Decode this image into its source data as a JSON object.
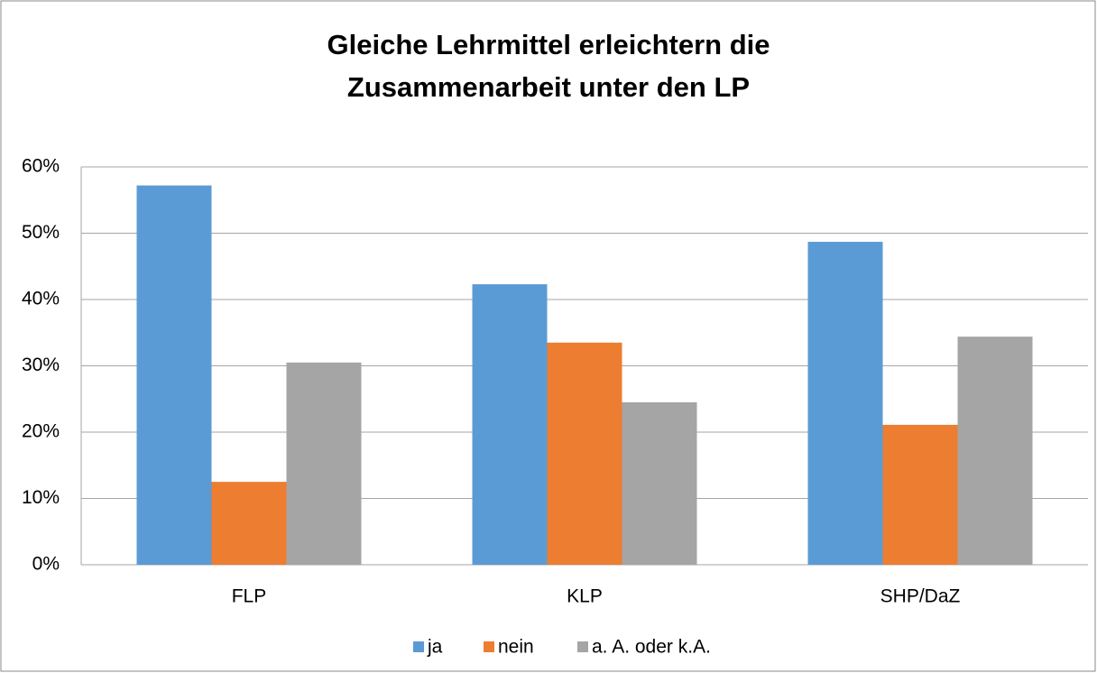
{
  "chart_data": {
    "type": "bar",
    "title": [
      "Gleiche Lehrmittel erleichtern die",
      "Zusammenarbeit unter den LP"
    ],
    "categories": [
      "FLP",
      "KLP",
      "SHP/DaZ"
    ],
    "series": [
      {
        "name": "ja",
        "color": "#5b9bd5",
        "values": [
          57.2,
          42.3,
          48.7
        ]
      },
      {
        "name": "nein",
        "color": "#ed7d31",
        "values": [
          12.5,
          33.5,
          21.1
        ]
      },
      {
        "name": "a. A. oder k.A.",
        "color": "#a5a5a5",
        "values": [
          30.5,
          24.5,
          34.4
        ]
      }
    ],
    "ylim": [
      0,
      60
    ],
    "yticks": [
      {
        "value": 0,
        "label": "0%"
      },
      {
        "value": 10,
        "label": "10%"
      },
      {
        "value": 20,
        "label": "20%"
      },
      {
        "value": 30,
        "label": "30%"
      },
      {
        "value": 40,
        "label": "40%"
      },
      {
        "value": 50,
        "label": "50%"
      },
      {
        "value": 60,
        "label": "60%"
      }
    ],
    "grid": true,
    "legend": "bottom"
  }
}
